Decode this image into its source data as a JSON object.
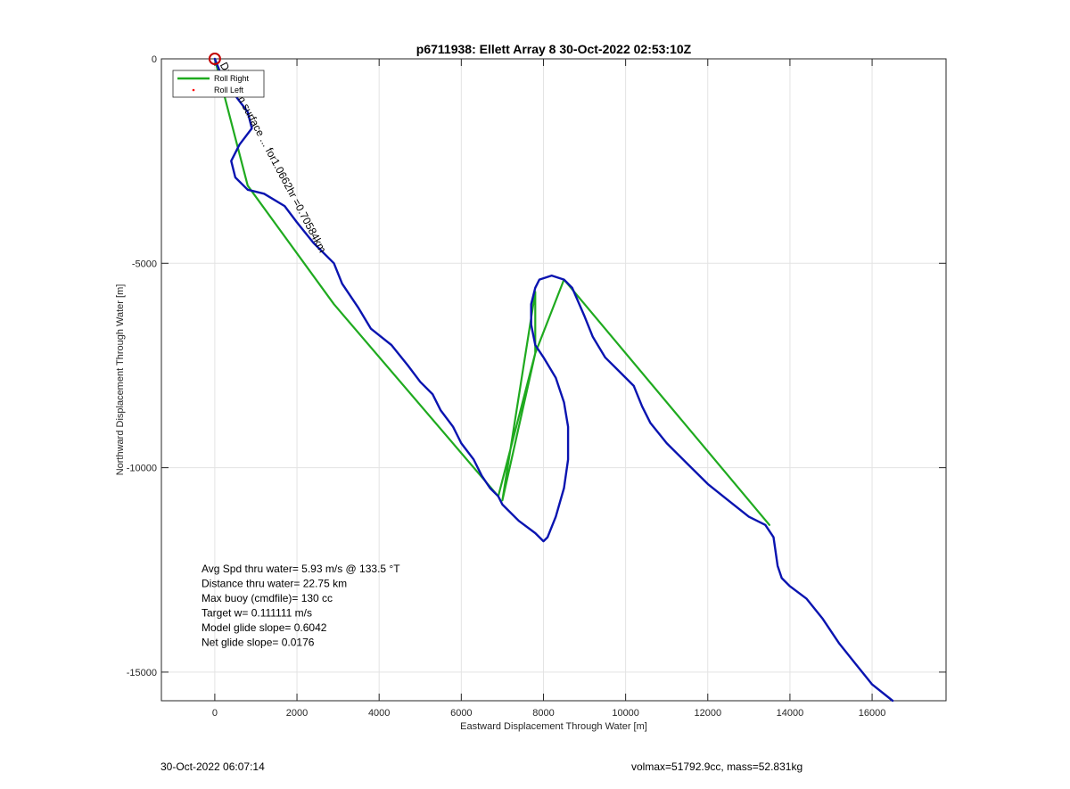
{
  "chart_data": {
    "type": "line",
    "title": "p6711938: Ellett Array 8 30-Oct-2022 02:53:10Z",
    "xlabel": "Eastward Displacement Through Water [m]",
    "ylabel": "Northward Displacement Through Water [m]",
    "xlim": [
      -1300,
      17800
    ],
    "ylim": [
      -15700,
      0
    ],
    "xticks": [
      0,
      2000,
      4000,
      6000,
      8000,
      10000,
      12000,
      14000,
      16000
    ],
    "yticks": [
      0,
      -5000,
      -10000,
      -15000
    ],
    "xtick_labels": [
      "0",
      "2000",
      "4000",
      "6000",
      "8000",
      "10000",
      "12000",
      "14000",
      "16000"
    ],
    "ytick_labels": [
      "0",
      "-5000",
      "-10000",
      "-15000"
    ],
    "grid": true,
    "legend_position": "top-left",
    "legend": [
      "Roll Right",
      "Roll Left"
    ],
    "series": [
      {
        "name": "Roll Right",
        "color": "#1faa1f",
        "x": [
          0,
          800,
          2900,
          6900,
          7800,
          7800,
          7000,
          7800,
          8500,
          13500
        ],
        "y": [
          0,
          -3100,
          -6000,
          -10700,
          -7200,
          -5700,
          -10800,
          -7200,
          -5400,
          -11400
        ]
      },
      {
        "name": "Roll Left",
        "color": "#ff0000",
        "x": [],
        "y": []
      },
      {
        "name": "",
        "color": "#0a14b0",
        "x": [
          0,
          200,
          500,
          800,
          900,
          600,
          400,
          500,
          800,
          1200,
          1700,
          2000,
          2400,
          2900,
          3100,
          3500,
          3800,
          4300,
          4700,
          5000,
          5300,
          5500,
          5800,
          6000,
          6300,
          6500,
          6700,
          6900,
          7000,
          7400,
          7800,
          8000,
          8100,
          8300,
          8500,
          8600,
          8600,
          8500,
          8300,
          8000,
          7800,
          7700,
          7700,
          7800,
          7900,
          8200,
          8500,
          8700,
          9000,
          9200,
          9500,
          9800,
          10200,
          10400,
          10600,
          11000,
          11500,
          12000,
          12500,
          13000,
          13400,
          13600,
          13700,
          13800,
          14000,
          14400,
          14800,
          15200,
          15600,
          16000,
          16500
        ],
        "y": [
          0,
          -500,
          -900,
          -1300,
          -1700,
          -2100,
          -2500,
          -2900,
          -3200,
          -3300,
          -3600,
          -4000,
          -4500,
          -5000,
          -5500,
          -6100,
          -6600,
          -7000,
          -7500,
          -7900,
          -8200,
          -8600,
          -9000,
          -9400,
          -9800,
          -10200,
          -10500,
          -10700,
          -10900,
          -11300,
          -11600,
          -11800,
          -11700,
          -11200,
          -10500,
          -9800,
          -9000,
          -8400,
          -7800,
          -7300,
          -7000,
          -6500,
          -6000,
          -5600,
          -5400,
          -5300,
          -5400,
          -5600,
          -6300,
          -6800,
          -7300,
          -7600,
          -8000,
          -8500,
          -8900,
          -9400,
          -9900,
          -10400,
          -10800,
          -11200,
          -11400,
          -11700,
          -12400,
          -12700,
          -12900,
          -13200,
          -13700,
          -14300,
          -14800,
          -15300,
          -15700
        ]
      }
    ],
    "markers": [
      {
        "name": "start-marker",
        "x": 0,
        "y": 0,
        "color": "#c00000"
      }
    ],
    "annotations": [
      {
        "text": "Drift from surface ... for1.0662hr =0.70584km",
        "x": 100,
        "y": -100,
        "angle": 62
      }
    ],
    "stats_lines": [
      "Avg Spd thru water=  5.93 m/s @ 133.5 °T",
      "Distance thru water= 22.75 km",
      "Max buoy (cmdfile)= 130 cc",
      "Target w= 0.111111 m/s",
      "Model glide slope= 0.6042",
      "Net glide slope= 0.0176"
    ]
  },
  "footer": {
    "left": "30-Oct-2022 06:07:14",
    "right": "volmax=51792.9cc, mass=52.831kg"
  }
}
